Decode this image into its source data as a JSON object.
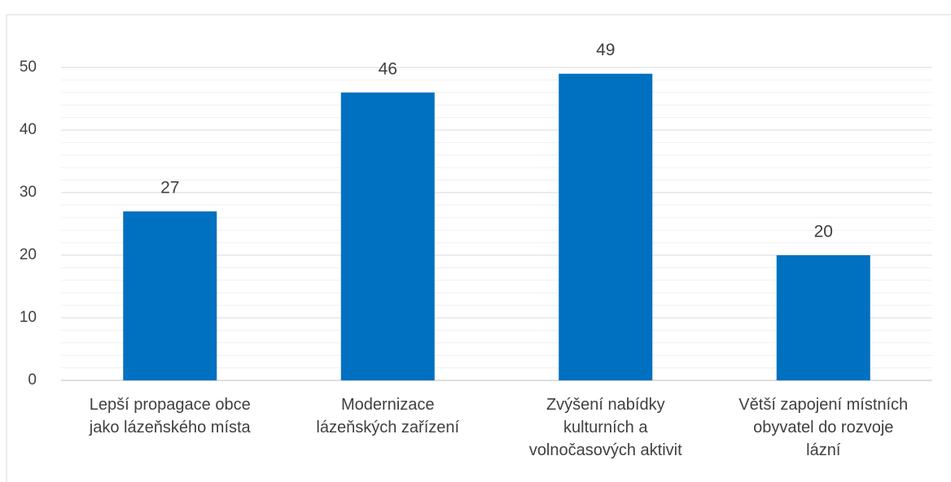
{
  "chart_data": {
    "type": "bar",
    "categories": [
      "Lepší propagace obce\njako lázeňského místa",
      "Modernizace\nlázeňských zařízení",
      "Zvýšení nabídky\nkulturních a\nvolnočasových aktivit",
      "Větší zapojení místních\nobyvatel do rozvoje\nlázní"
    ],
    "values": [
      27,
      46,
      49,
      20
    ],
    "color": "#0070c0",
    "ylim": [
      0,
      50
    ],
    "yticks": [
      0,
      10,
      20,
      30,
      40,
      50
    ],
    "grid": true,
    "minor_grid": true
  }
}
